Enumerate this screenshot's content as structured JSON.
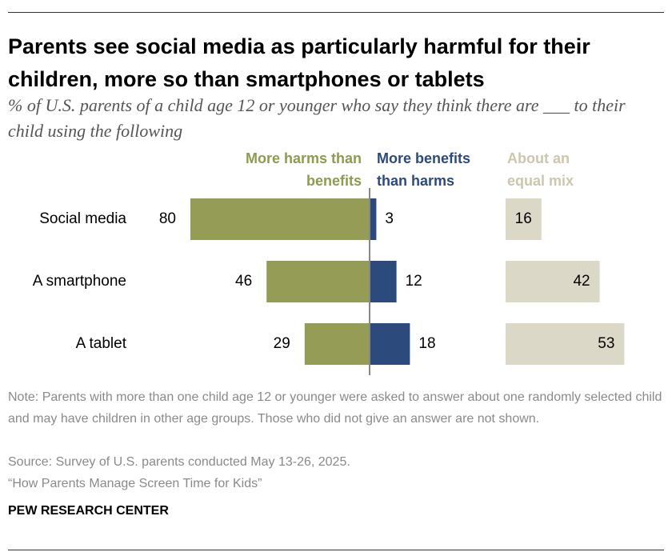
{
  "chart_data": {
    "type": "diverging_bar",
    "title": "Parents see social media as particularly harmful for their children, more so than smartphones or tablets",
    "subtitle": "% of U.S. parents of a child age 12 or younger who say they think there are ___ to their child using the following",
    "categories": [
      "Social media",
      "A smartphone",
      "A tablet"
    ],
    "series": [
      {
        "name": "More harms than benefits",
        "color": "#959c56",
        "label_color": "#8f9a4f",
        "placement": "left",
        "values": [
          80,
          46,
          29
        ]
      },
      {
        "name": "More benefits than harms",
        "color": "#2c4a7c",
        "label_color": "#2c4a7c",
        "placement": "right",
        "values": [
          3,
          12,
          18
        ]
      },
      {
        "name": "About an equal mix",
        "color": "#dcd8c8",
        "label_color": "#cdc6ae",
        "placement": "column",
        "values": [
          16,
          42,
          53
        ]
      }
    ],
    "note": "Note: Parents with more than one child age 12 or younger were asked to answer about one randomly selected child and may have children in other age groups. Those who did not give an answer are not shown.",
    "source": "Source: Survey of U.S. parents conducted May 13-26, 2025.",
    "report": "“How Parents Manage Screen Time for Kids”",
    "brand": "PEW RESEARCH CENTER"
  }
}
